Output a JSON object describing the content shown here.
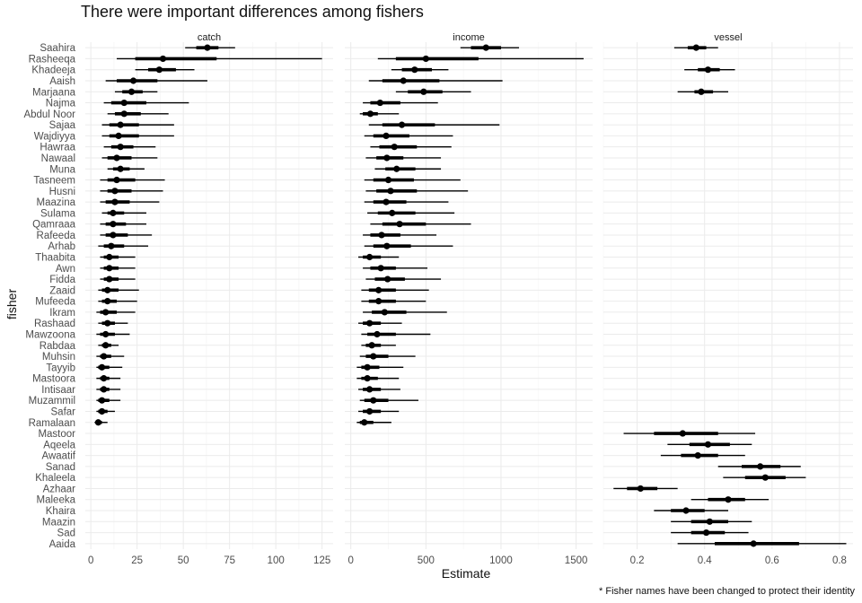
{
  "chart_data": {
    "type": "pointrange",
    "title": "There were important differences among fishers",
    "xlabel": "Estimate",
    "ylabel": "fisher",
    "caption": "* Fisher names have been changed to protect their identity",
    "fishers": [
      "Saahira",
      "Rasheeqa",
      "Khadeeja",
      "Aaish",
      "Marjaana",
      "Najma",
      "Abdul Noor",
      "Sajaa",
      "Wajdiyya",
      "Hawraa",
      "Nawaal",
      "Muna",
      "Tasneem",
      "Husni",
      "Maazina",
      "Sulama",
      "Qamraaa",
      "Rafeeda",
      "Arhab",
      "Thaabita",
      "Awn",
      "Fidda",
      "Zaaid",
      "Mufeeda",
      "Ikram",
      "Rashaad",
      "Mawzoona",
      "Rabdaa",
      "Muhsin",
      "Tayyib",
      "Mastoora",
      "Intisaar",
      "Muzammil",
      "Safar",
      "Ramalaan",
      "Mastoor",
      "Aqeela",
      "Awaatif",
      "Sanad",
      "Khaleela",
      "Azhaar",
      "Maleeka",
      "Khaira",
      "Maazin",
      "Sad",
      "Aaida"
    ],
    "panels": [
      {
        "name": "catch",
        "xlim": [
          -3,
          131
        ],
        "ticks": [
          0,
          25,
          50,
          75,
          100,
          125
        ],
        "rows": [
          {
            "fisher": "Saahira",
            "est": 63,
            "lo66": 57,
            "hi66": 69,
            "lo95": 51,
            "hi95": 78
          },
          {
            "fisher": "Rasheeqa",
            "est": 39,
            "lo66": 24,
            "hi66": 68,
            "lo95": 14,
            "hi95": 125
          },
          {
            "fisher": "Khadeeja",
            "est": 37,
            "lo66": 31,
            "hi66": 46,
            "lo95": 24,
            "hi95": 56
          },
          {
            "fisher": "Aaish",
            "est": 23,
            "lo66": 14,
            "hi66": 36,
            "lo95": 8,
            "hi95": 63
          },
          {
            "fisher": "Marjaana",
            "est": 22,
            "lo66": 17,
            "hi66": 28,
            "lo95": 13,
            "hi95": 36
          },
          {
            "fisher": "Najma",
            "est": 18,
            "lo66": 11,
            "hi66": 30,
            "lo95": 7,
            "hi95": 53
          },
          {
            "fisher": "Abdul Noor",
            "est": 18,
            "lo66": 13,
            "hi66": 27,
            "lo95": 9,
            "hi95": 42
          },
          {
            "fisher": "Sajaa",
            "est": 16,
            "lo66": 10,
            "hi66": 26,
            "lo95": 6,
            "hi95": 45
          },
          {
            "fisher": "Wajdiyya",
            "est": 15,
            "lo66": 10,
            "hi66": 26,
            "lo95": 6,
            "hi95": 45
          },
          {
            "fisher": "Hawraa",
            "est": 16,
            "lo66": 11,
            "hi66": 23,
            "lo95": 7,
            "hi95": 35
          },
          {
            "fisher": "Nawaal",
            "est": 14,
            "lo66": 9,
            "hi66": 22,
            "lo95": 6,
            "hi95": 36
          },
          {
            "fisher": "Muna",
            "est": 16,
            "lo66": 12,
            "hi66": 21,
            "lo95": 9,
            "hi95": 29
          },
          {
            "fisher": "Tasneem",
            "est": 14,
            "lo66": 9,
            "hi66": 24,
            "lo95": 5,
            "hi95": 40
          },
          {
            "fisher": "Husni",
            "est": 13,
            "lo66": 9,
            "hi66": 22,
            "lo95": 5,
            "hi95": 39
          },
          {
            "fisher": "Maazina",
            "est": 13,
            "lo66": 8,
            "hi66": 21,
            "lo95": 5,
            "hi95": 37
          },
          {
            "fisher": "Sulama",
            "est": 12,
            "lo66": 9,
            "hi66": 18,
            "lo95": 6,
            "hi95": 30
          },
          {
            "fisher": "Qamraaa",
            "est": 12,
            "lo66": 8,
            "hi66": 19,
            "lo95": 5,
            "hi95": 30
          },
          {
            "fisher": "Rafeeda",
            "est": 12,
            "lo66": 8,
            "hi66": 20,
            "lo95": 5,
            "hi95": 33
          },
          {
            "fisher": "Arhab",
            "est": 11,
            "lo66": 7,
            "hi66": 18,
            "lo95": 4,
            "hi95": 31
          },
          {
            "fisher": "Thaabita",
            "est": 10,
            "lo66": 7,
            "hi66": 15,
            "lo95": 5,
            "hi95": 24
          },
          {
            "fisher": "Awn",
            "est": 10,
            "lo66": 7,
            "hi66": 15,
            "lo95": 5,
            "hi95": 24
          },
          {
            "fisher": "Fidda",
            "est": 10,
            "lo66": 7,
            "hi66": 15,
            "lo95": 5,
            "hi95": 24
          },
          {
            "fisher": "Zaaid",
            "est": 9,
            "lo66": 6,
            "hi66": 15,
            "lo95": 4,
            "hi95": 26
          },
          {
            "fisher": "Mufeeda",
            "est": 9,
            "lo66": 6,
            "hi66": 14,
            "lo95": 4,
            "hi95": 25
          },
          {
            "fisher": "Ikram",
            "est": 8,
            "lo66": 5,
            "hi66": 14,
            "lo95": 3,
            "hi95": 24
          },
          {
            "fisher": "Rashaad",
            "est": 9,
            "lo66": 6,
            "hi66": 13,
            "lo95": 4,
            "hi95": 20
          },
          {
            "fisher": "Mawzoona",
            "est": 8,
            "lo66": 5,
            "hi66": 13,
            "lo95": 3,
            "hi95": 21
          },
          {
            "fisher": "Rabdaa",
            "est": 8,
            "lo66": 6,
            "hi66": 11,
            "lo95": 4,
            "hi95": 15
          },
          {
            "fisher": "Muhsin",
            "est": 7,
            "lo66": 5,
            "hi66": 11,
            "lo95": 3,
            "hi95": 18
          },
          {
            "fisher": "Tayyib",
            "est": 6,
            "lo66": 4,
            "hi66": 10,
            "lo95": 3,
            "hi95": 17
          },
          {
            "fisher": "Mastoora",
            "est": 7,
            "lo66": 5,
            "hi66": 10,
            "lo95": 3,
            "hi95": 16
          },
          {
            "fisher": "Intisaar",
            "est": 7,
            "lo66": 5,
            "hi66": 10,
            "lo95": 3,
            "hi95": 16
          },
          {
            "fisher": "Muzammil",
            "est": 6,
            "lo66": 4,
            "hi66": 10,
            "lo95": 3,
            "hi95": 16
          },
          {
            "fisher": "Safar",
            "est": 6,
            "lo66": 4,
            "hi66": 9,
            "lo95": 3,
            "hi95": 13
          },
          {
            "fisher": "Ramalaan",
            "est": 4,
            "lo66": 3,
            "hi66": 6,
            "lo95": 2,
            "hi95": 9
          }
        ]
      },
      {
        "name": "income",
        "xlim": [
          -40,
          1610
        ],
        "ticks": [
          0,
          500,
          1000,
          1500
        ],
        "rows": [
          {
            "fisher": "Saahira",
            "est": 900,
            "lo66": 800,
            "hi66": 1000,
            "lo95": 730,
            "hi95": 1120
          },
          {
            "fisher": "Rasheeqa",
            "est": 500,
            "lo66": 300,
            "hi66": 850,
            "lo95": 180,
            "hi95": 1550
          },
          {
            "fisher": "Khadeeja",
            "est": 425,
            "lo66": 340,
            "hi66": 540,
            "lo95": 270,
            "hi95": 650
          },
          {
            "fisher": "Aaish",
            "est": 350,
            "lo66": 210,
            "hi66": 590,
            "lo95": 120,
            "hi95": 1010
          },
          {
            "fisher": "Marjaana",
            "est": 485,
            "lo66": 380,
            "hi66": 610,
            "lo95": 300,
            "hi95": 800
          },
          {
            "fisher": "Najma",
            "est": 195,
            "lo66": 130,
            "hi66": 330,
            "lo95": 80,
            "hi95": 580
          },
          {
            "fisher": "Abdul Noor",
            "est": 130,
            "lo66": 80,
            "hi66": 180,
            "lo95": 60,
            "hi95": 320
          },
          {
            "fisher": "Sajaa",
            "est": 340,
            "lo66": 210,
            "hi66": 560,
            "lo95": 120,
            "hi95": 990
          },
          {
            "fisher": "Wajdiyya",
            "est": 235,
            "lo66": 150,
            "hi66": 390,
            "lo95": 90,
            "hi95": 680
          },
          {
            "fisher": "Hawraa",
            "est": 290,
            "lo66": 190,
            "hi66": 440,
            "lo95": 130,
            "hi95": 670
          },
          {
            "fisher": "Nawaal",
            "est": 240,
            "lo66": 170,
            "hi66": 350,
            "lo95": 100,
            "hi95": 600
          },
          {
            "fisher": "Muna",
            "est": 305,
            "lo66": 230,
            "hi66": 430,
            "lo95": 160,
            "hi95": 600
          },
          {
            "fisher": "Tasneem",
            "est": 250,
            "lo66": 150,
            "hi66": 420,
            "lo95": 90,
            "hi95": 730
          },
          {
            "fisher": "Husni",
            "est": 265,
            "lo66": 170,
            "hi66": 440,
            "lo95": 100,
            "hi95": 780
          },
          {
            "fisher": "Maazina",
            "est": 235,
            "lo66": 150,
            "hi66": 370,
            "lo95": 90,
            "hi95": 650
          },
          {
            "fisher": "Sulama",
            "est": 275,
            "lo66": 180,
            "hi66": 430,
            "lo95": 110,
            "hi95": 690
          },
          {
            "fisher": "Qamraaa",
            "est": 325,
            "lo66": 210,
            "hi66": 500,
            "lo95": 130,
            "hi95": 800
          },
          {
            "fisher": "Rafeeda",
            "est": 205,
            "lo66": 130,
            "hi66": 330,
            "lo95": 80,
            "hi95": 570
          },
          {
            "fisher": "Arhab",
            "est": 240,
            "lo66": 150,
            "hi66": 400,
            "lo95": 90,
            "hi95": 680
          },
          {
            "fisher": "Thaabita",
            "est": 125,
            "lo66": 80,
            "hi66": 200,
            "lo95": 50,
            "hi95": 320
          },
          {
            "fisher": "Awn",
            "est": 200,
            "lo66": 130,
            "hi66": 300,
            "lo95": 80,
            "hi95": 510
          },
          {
            "fisher": "Fidda",
            "est": 245,
            "lo66": 160,
            "hi66": 360,
            "lo95": 100,
            "hi95": 600
          },
          {
            "fisher": "Zaaid",
            "est": 185,
            "lo66": 120,
            "hi66": 300,
            "lo95": 70,
            "hi95": 520
          },
          {
            "fisher": "Mufeeda",
            "est": 185,
            "lo66": 120,
            "hi66": 300,
            "lo95": 70,
            "hi95": 500
          },
          {
            "fisher": "Ikram",
            "est": 225,
            "lo66": 140,
            "hi66": 370,
            "lo95": 80,
            "hi95": 640
          },
          {
            "fisher": "Rashaad",
            "est": 125,
            "lo66": 80,
            "hi66": 200,
            "lo95": 50,
            "hi95": 340
          },
          {
            "fisher": "Mawzoona",
            "est": 175,
            "lo66": 110,
            "hi66": 300,
            "lo95": 70,
            "hi95": 530
          },
          {
            "fisher": "Rabdaa",
            "est": 140,
            "lo66": 100,
            "hi66": 200,
            "lo95": 70,
            "hi95": 300
          },
          {
            "fisher": "Muhsin",
            "est": 150,
            "lo66": 100,
            "hi66": 250,
            "lo95": 60,
            "hi95": 430
          },
          {
            "fisher": "Tayyib",
            "est": 110,
            "lo66": 70,
            "hi66": 190,
            "lo95": 40,
            "hi95": 350
          },
          {
            "fisher": "Mastoora",
            "est": 110,
            "lo66": 70,
            "hi66": 180,
            "lo95": 40,
            "hi95": 320
          },
          {
            "fisher": "Intisaar",
            "est": 125,
            "lo66": 80,
            "hi66": 200,
            "lo95": 50,
            "hi95": 330
          },
          {
            "fisher": "Muzammil",
            "est": 150,
            "lo66": 90,
            "hi66": 250,
            "lo95": 60,
            "hi95": 450
          },
          {
            "fisher": "Safar",
            "est": 125,
            "lo66": 80,
            "hi66": 200,
            "lo95": 50,
            "hi95": 320
          },
          {
            "fisher": "Ramalaan",
            "est": 90,
            "lo66": 60,
            "hi66": 150,
            "lo95": 40,
            "hi95": 270
          }
        ]
      },
      {
        "name": "vessel",
        "xlim": [
          0.1,
          0.84
        ],
        "ticks": [
          0.2,
          0.4,
          0.6,
          0.8
        ],
        "rows": [
          {
            "fisher": "Saahira",
            "est": 0.375,
            "lo66": 0.35,
            "hi66": 0.405,
            "lo95": 0.31,
            "hi95": 0.44
          },
          {
            "fisher": "Khadeeja",
            "est": 0.41,
            "lo66": 0.38,
            "hi66": 0.445,
            "lo95": 0.34,
            "hi95": 0.49
          },
          {
            "fisher": "Marjaana",
            "est": 0.39,
            "lo66": 0.37,
            "hi66": 0.425,
            "lo95": 0.32,
            "hi95": 0.47
          },
          {
            "fisher": "Mastoor",
            "est": 0.335,
            "lo66": 0.25,
            "hi66": 0.44,
            "lo95": 0.16,
            "hi95": 0.55
          },
          {
            "fisher": "Aqeela",
            "est": 0.41,
            "lo66": 0.355,
            "hi66": 0.475,
            "lo95": 0.29,
            "hi95": 0.54
          },
          {
            "fisher": "Awaatif",
            "est": 0.38,
            "lo66": 0.33,
            "hi66": 0.44,
            "lo95": 0.27,
            "hi95": 0.52
          },
          {
            "fisher": "Sanad",
            "est": 0.565,
            "lo66": 0.51,
            "hi66": 0.625,
            "lo95": 0.44,
            "hi95": 0.685
          },
          {
            "fisher": "Khaleela",
            "est": 0.58,
            "lo66": 0.52,
            "hi66": 0.64,
            "lo95": 0.455,
            "hi95": 0.7
          },
          {
            "fisher": "Azhaar",
            "est": 0.21,
            "lo66": 0.17,
            "hi66": 0.26,
            "lo95": 0.13,
            "hi95": 0.32
          },
          {
            "fisher": "Maleeka",
            "est": 0.47,
            "lo66": 0.41,
            "hi66": 0.52,
            "lo95": 0.36,
            "hi95": 0.59
          },
          {
            "fisher": "Khaira",
            "est": 0.345,
            "lo66": 0.3,
            "hi66": 0.4,
            "lo95": 0.25,
            "hi95": 0.47
          },
          {
            "fisher": "Maazin",
            "est": 0.415,
            "lo66": 0.36,
            "hi66": 0.47,
            "lo95": 0.3,
            "hi95": 0.54
          },
          {
            "fisher": "Sad",
            "est": 0.405,
            "lo66": 0.36,
            "hi66": 0.46,
            "lo95": 0.3,
            "hi95": 0.53
          },
          {
            "fisher": "Aaida",
            "est": 0.545,
            "lo66": 0.43,
            "hi66": 0.68,
            "lo95": 0.32,
            "hi95": 0.82
          }
        ]
      }
    ]
  }
}
